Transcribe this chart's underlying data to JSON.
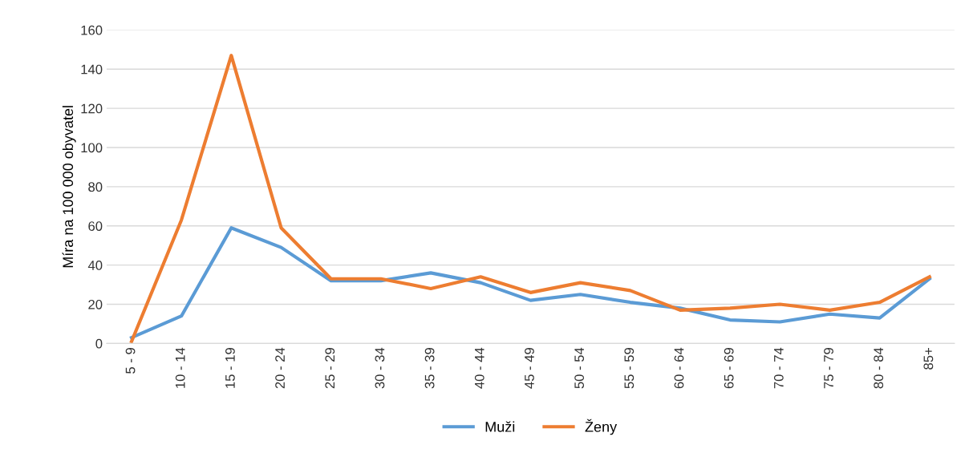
{
  "chart_data": {
    "type": "line",
    "ylabel": "Míra na 100 000 obyvatel",
    "categories": [
      "5 - 9",
      "10 - 14",
      "15 - 19",
      "20 - 24",
      "25 - 29",
      "30 - 34",
      "35 - 39",
      "40 - 44",
      "45 - 49",
      "50 - 54",
      "55 - 59",
      "60 - 64",
      "65 - 69",
      "70 - 74",
      "75 - 79",
      "80 - 84",
      "85+"
    ],
    "series": [
      {
        "name": "Muži",
        "color": "#5b9bd5",
        "values": [
          3,
          14,
          59,
          49,
          32,
          32,
          36,
          31,
          22,
          25,
          21,
          18,
          12,
          11,
          15,
          13,
          33
        ]
      },
      {
        "name": "Ženy",
        "color": "#ed7d31",
        "values": [
          1,
          63,
          147,
          59,
          33,
          33,
          28,
          34,
          26,
          31,
          27,
          17,
          18,
          20,
          17,
          21,
          34
        ]
      }
    ],
    "ylim": [
      0,
      160
    ],
    "yticks": [
      0,
      20,
      40,
      60,
      80,
      100,
      120,
      140,
      160
    ],
    "grid": "y",
    "legend": "bottom",
    "marker": "none",
    "line_style": "solid"
  }
}
